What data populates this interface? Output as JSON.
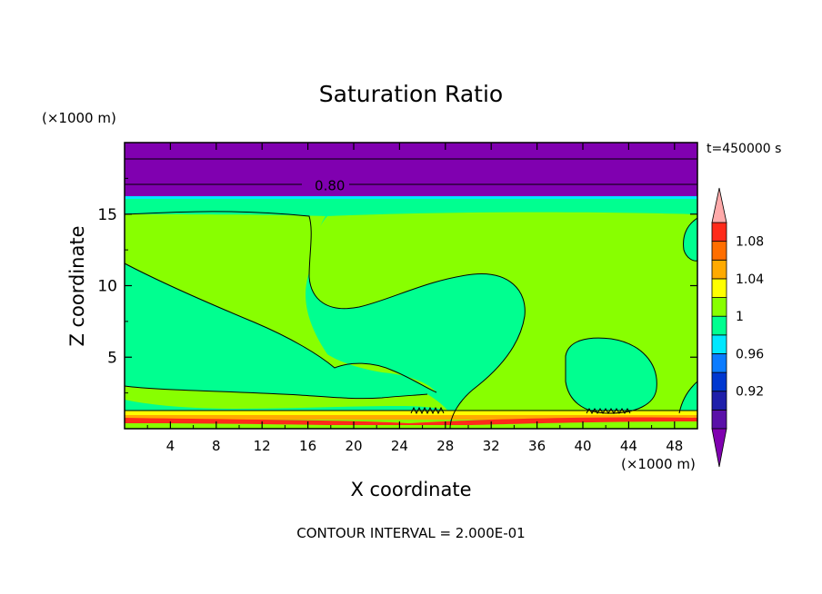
{
  "chart_data": {
    "type": "heatmap",
    "title": "Saturation Ratio",
    "xlabel": "X coordinate",
    "ylabel": "Z coordinate",
    "x_unit": "(×1000 m)",
    "y_unit": "(×1000 m)",
    "time_label": "t=450000 s",
    "footer": "CONTOUR INTERVAL = 2.000E-01",
    "xlim": [
      0,
      50
    ],
    "ylim": [
      0,
      20
    ],
    "x_ticks": [
      {
        "value": 4,
        "label": "4"
      },
      {
        "value": 8,
        "label": "8"
      },
      {
        "value": 12,
        "label": "12"
      },
      {
        "value": 16,
        "label": "16"
      },
      {
        "value": 20,
        "label": "20"
      },
      {
        "value": 24,
        "label": "24"
      },
      {
        "value": 28,
        "label": "28"
      },
      {
        "value": 32,
        "label": "32"
      },
      {
        "value": 36,
        "label": "36"
      },
      {
        "value": 40,
        "label": "40"
      },
      {
        "value": 44,
        "label": "44"
      },
      {
        "value": 48,
        "label": "48"
      }
    ],
    "y_ticks": [
      {
        "value": 5,
        "label": "5"
      },
      {
        "value": 10,
        "label": "10"
      },
      {
        "value": 15,
        "label": "15"
      }
    ],
    "contour_labels": [
      {
        "value": "0.80",
        "x": 17.6,
        "z": 17.0
      }
    ],
    "colorbar": {
      "boundaries": [
        0.9,
        0.92,
        0.94,
        0.96,
        0.98,
        1.0,
        1.02,
        1.04,
        1.06,
        1.08,
        1.1
      ],
      "colors": [
        "#5a10a8",
        "#1f1faa",
        "#0038d0",
        "#0b7cff",
        "#00e8ff",
        "#00ff90",
        "#88ff00",
        "#ffff00",
        "#ffaa00",
        "#ff6e00",
        "#ff2a1a"
      ],
      "under_color": "#8000b0",
      "over_color": "#ffaaaa",
      "tick_labels": [
        {
          "value": 0.92,
          "label": "0.92"
        },
        {
          "value": 0.96,
          "label": "0.96"
        },
        {
          "value": 1.0,
          "label": "1"
        },
        {
          "value": 1.04,
          "label": "1.04"
        },
        {
          "value": 1.08,
          "label": "1.08"
        }
      ]
    },
    "regions_colors": {
      "upper_dry": "#8000b0",
      "cyan_band": "#00e8ff",
      "moist": "#00ff90",
      "supersat": "#88ff00",
      "yellow": "#ffff00",
      "orange": "#ffaa00",
      "red": "#ff2a1a"
    }
  }
}
